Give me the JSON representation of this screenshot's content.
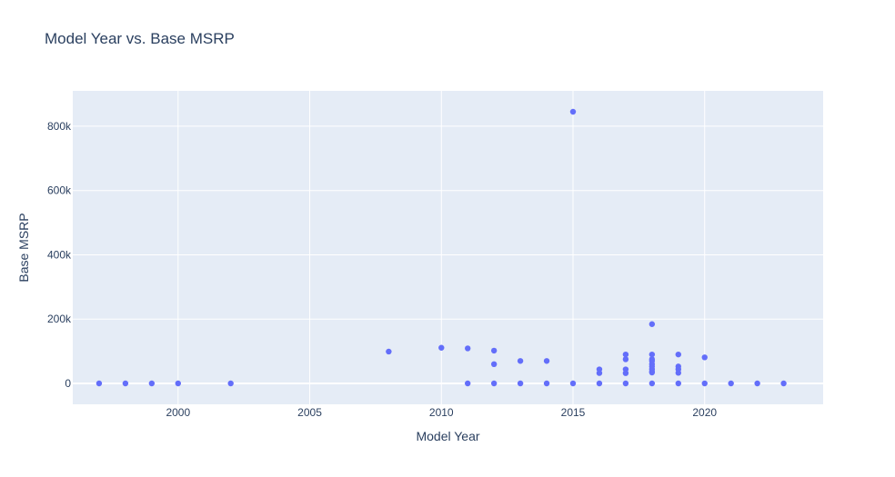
{
  "chart_data": {
    "type": "scatter",
    "title": "Model Year vs. Base MSRP",
    "xlabel": "Model Year",
    "ylabel": "Base MSRP",
    "xlim": [
      1996,
      2024.5
    ],
    "ylim": [
      -65000,
      910000
    ],
    "xticks": [
      2000,
      2005,
      2010,
      2015,
      2020
    ],
    "xtick_labels": [
      "2000",
      "2005",
      "2010",
      "2015",
      "2020"
    ],
    "yticks": [
      0,
      200000,
      400000,
      600000,
      800000
    ],
    "ytick_labels": [
      "0",
      "200k",
      "400k",
      "600k",
      "800k"
    ],
    "grid": true,
    "legend": false,
    "series": [
      {
        "marker_color": "#636efa",
        "points": [
          [
            1997,
            0
          ],
          [
            1998,
            0
          ],
          [
            1999,
            0
          ],
          [
            2000,
            0
          ],
          [
            2002,
            0
          ],
          [
            2008,
            98950
          ],
          [
            2010,
            110950
          ],
          [
            2011,
            0
          ],
          [
            2011,
            109000
          ],
          [
            2012,
            0
          ],
          [
            2012,
            59900
          ],
          [
            2012,
            102000
          ],
          [
            2013,
            0
          ],
          [
            2013,
            69900
          ],
          [
            2014,
            0
          ],
          [
            2014,
            69900
          ],
          [
            2015,
            0
          ],
          [
            2015,
            845000
          ],
          [
            2016,
            0
          ],
          [
            2016,
            32250
          ],
          [
            2016,
            43700
          ],
          [
            2017,
            0
          ],
          [
            2017,
            31950
          ],
          [
            2017,
            43700
          ],
          [
            2017,
            75095
          ],
          [
            2017,
            90000
          ],
          [
            2018,
            0
          ],
          [
            2018,
            33900
          ],
          [
            2018,
            36900
          ],
          [
            2018,
            43700
          ],
          [
            2018,
            52650
          ],
          [
            2018,
            59900
          ],
          [
            2018,
            69900
          ],
          [
            2018,
            75095
          ],
          [
            2018,
            90000
          ],
          [
            2018,
            184400
          ],
          [
            2019,
            0
          ],
          [
            2019,
            32900
          ],
          [
            2019,
            43700
          ],
          [
            2019,
            52650
          ],
          [
            2019,
            90000
          ],
          [
            2020,
            0
          ],
          [
            2020,
            81100
          ],
          [
            2021,
            0
          ],
          [
            2022,
            0
          ],
          [
            2023,
            0
          ]
        ]
      }
    ]
  }
}
